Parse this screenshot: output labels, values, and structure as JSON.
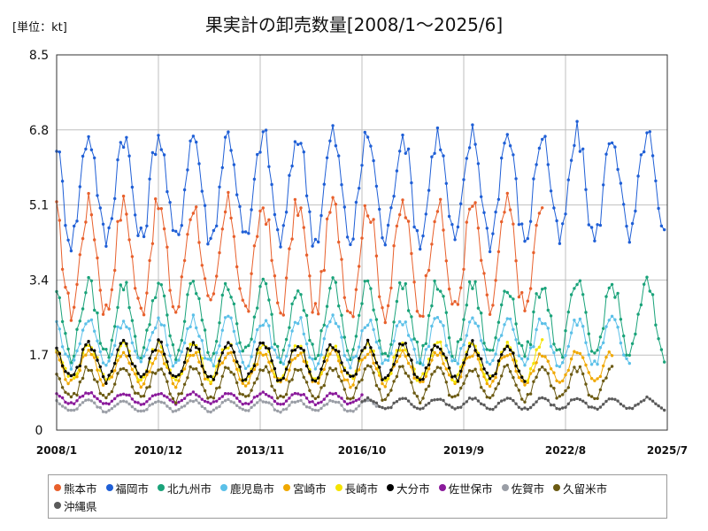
{
  "header": {
    "unit": "[単位：kt]",
    "title": "果実計の卸売数量[2008/1～2025/6]"
  },
  "chart_data": {
    "type": "line",
    "title": "果実計の卸売数量[2008/1～2025/6]",
    "unit": "[単位：kt]",
    "ylim": [
      0,
      8.5
    ],
    "y_ticks": [
      "0",
      "1.7",
      "3.4",
      "5.1",
      "6.8",
      "8.5"
    ],
    "x_ticks": [
      "2008/1",
      "2010/12",
      "2013/11",
      "2016/10",
      "2019/9",
      "2022/8",
      "2025/7"
    ],
    "x_start": "2008/1",
    "grid": true,
    "legend_position": "bottom",
    "series": [
      {
        "name": "熊本市",
        "color": "#e8602c",
        "start": "2008/1",
        "end": "2021/12",
        "base": 3.9,
        "amp": 1.2,
        "peak": 12
      },
      {
        "name": "福岡市",
        "color": "#1f5fd6",
        "start": "2008/1",
        "end": "2025/6",
        "base": 5.5,
        "amp": 1.2,
        "peak": 12
      },
      {
        "name": "北九州市",
        "color": "#1aa37a",
        "start": "2008/1",
        "end": "2025/6",
        "base": 2.5,
        "amp": 0.8,
        "peak": 12
      },
      {
        "name": "鹿児島市",
        "color": "#5bc0e8",
        "start": "2008/1",
        "end": "2024/6",
        "base": 2.0,
        "amp": 0.5,
        "peak": 12
      },
      {
        "name": "宮崎市",
        "color": "#f0a800",
        "start": "2008/1",
        "end": "2023/12",
        "base": 1.4,
        "amp": 0.35,
        "peak": 12
      },
      {
        "name": "長崎市",
        "color": "#f5e400",
        "start": "2008/1",
        "end": "2021/12",
        "base": 1.55,
        "amp": 0.4,
        "peak": 12
      },
      {
        "name": "大分市",
        "color": "#000000",
        "start": "2008/1",
        "end": "2021/6",
        "base": 1.55,
        "amp": 0.4,
        "peak": 12
      },
      {
        "name": "佐世保市",
        "color": "#8a1a9b",
        "start": "2008/1",
        "end": "2016/10",
        "base": 0.72,
        "amp": 0.12,
        "peak": 12
      },
      {
        "name": "佐賀市",
        "color": "#9a9ea6",
        "start": "2008/1",
        "end": "2017/3",
        "base": 0.55,
        "amp": 0.12,
        "peak": 12
      },
      {
        "name": "久留米市",
        "color": "#6b5a12",
        "start": "2008/1",
        "end": "2023/12",
        "base": 1.05,
        "amp": 0.35,
        "peak": 12
      },
      {
        "name": "沖縄県",
        "color": "#5a5a5a",
        "start": "2016/10",
        "end": "2025/6",
        "base": 0.6,
        "amp": 0.12,
        "peak": 12
      }
    ]
  }
}
